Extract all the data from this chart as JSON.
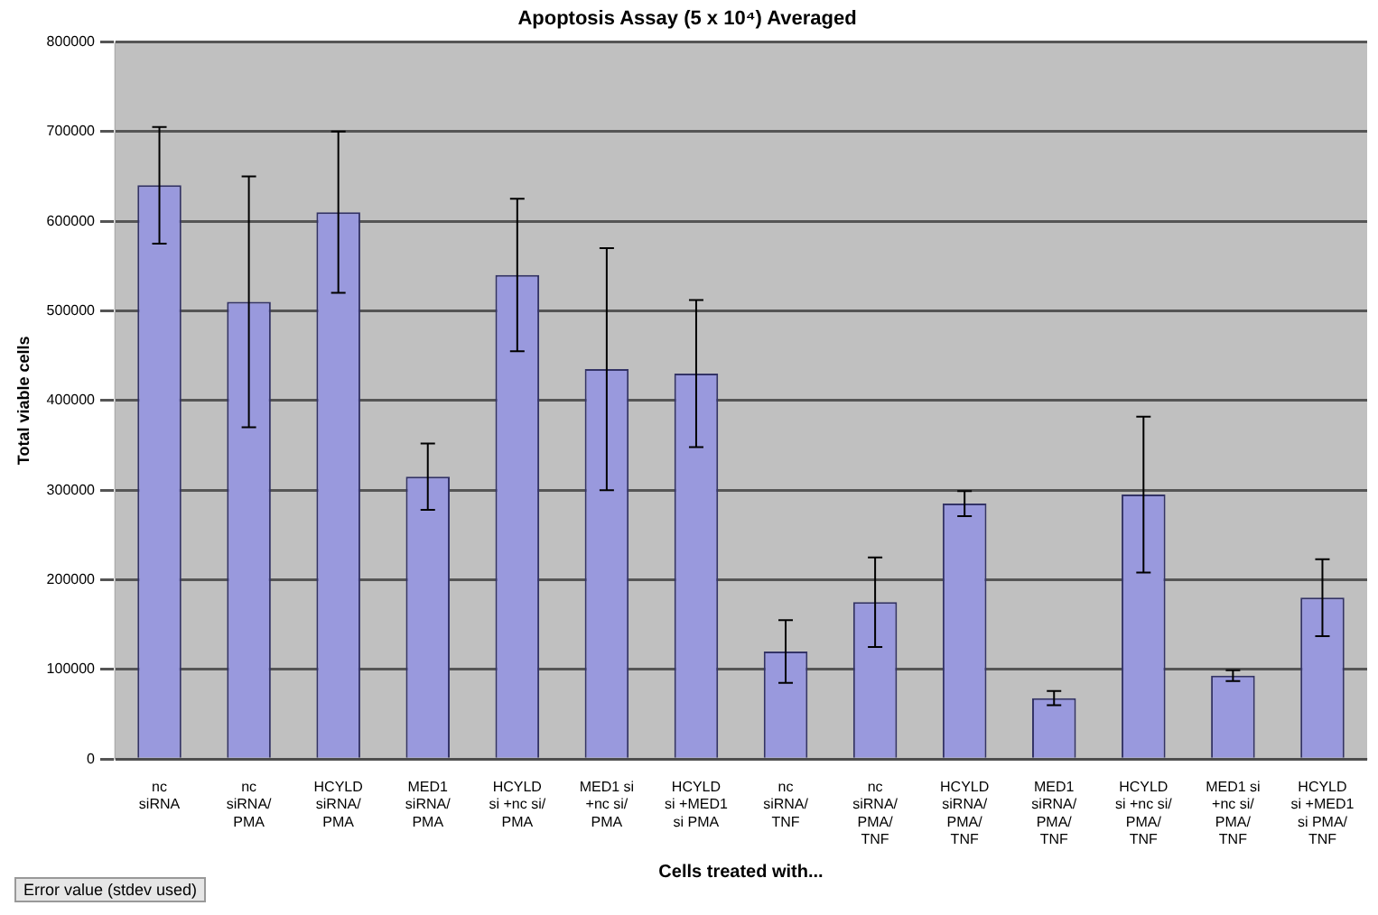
{
  "chart_data": {
    "type": "bar",
    "title": "Apoptosis Assay (5 x 10⁴) Averaged",
    "xlabel": "Cells treated with...",
    "ylabel": "Total viable cells",
    "categories": [
      "nc\nsiRNA",
      "nc\nsiRNA/\nPMA",
      "HCYLD\nsiRNA/\nPMA",
      "MED1\nsiRNA/\nPMA",
      "HCYLD\nsi +nc si/\nPMA",
      "MED1 si\n+nc si/\nPMA",
      "HCYLD\nsi +MED1\nsi PMA",
      "nc\nsiRNA/\nTNF",
      "nc\nsiRNA/\nPMA/\nTNF",
      "HCYLD\nsiRNA/\nPMA/\nTNF",
      "MED1\nsiRNA/\nPMA/\nTNF",
      "HCYLD\nsi +nc si/\nPMA/\nTNF",
      "MED1 si\n+nc si/\nPMA/\nTNF",
      "HCYLD\nsi +MED1\nsi PMA/\nTNF"
    ],
    "values": [
      640000,
      510000,
      610000,
      315000,
      540000,
      435000,
      430000,
      120000,
      175000,
      285000,
      68000,
      295000,
      93000,
      180000
    ],
    "errors": [
      65000,
      140000,
      90000,
      37000,
      85000,
      135000,
      82000,
      35000,
      50000,
      14000,
      8000,
      87000,
      6000,
      43000
    ],
    "color": "#9999dd",
    "ylim": [
      0,
      800000
    ],
    "yticks": [
      0,
      100000,
      200000,
      300000,
      400000,
      500000,
      600000,
      700000,
      800000
    ],
    "grid": "y",
    "legend": false,
    "annotations": [
      "Error value (stdev used)"
    ]
  }
}
